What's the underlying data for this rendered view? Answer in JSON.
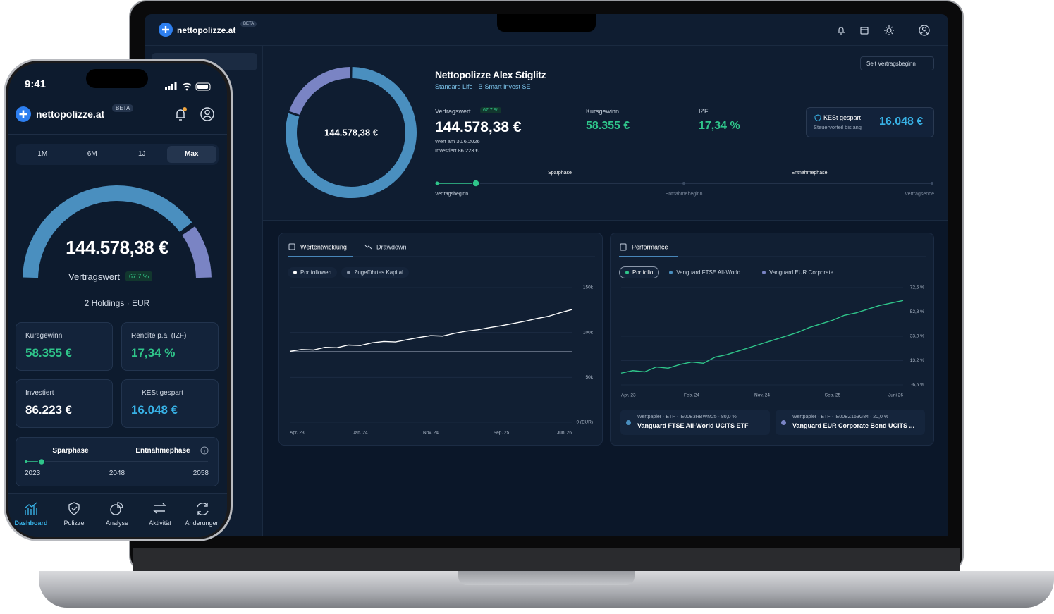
{
  "laptop": {
    "brand": "nettopolizze.at",
    "badge": "BETA",
    "period_select": "Seit Vertragsbeginn",
    "donut": {
      "type": "pie",
      "center_label": "144.578,38 €",
      "values": [
        80,
        20
      ],
      "colors": [
        "#4a8fbf",
        "#7a84c4"
      ]
    },
    "profile": {
      "name": "Nettopolizze Alex Stiglitz",
      "subtitle": "Standard Life · B-Smart Invest SE"
    },
    "stats": {
      "vertragswert_label": "Vertragswert",
      "change": "67,7 %",
      "vertragswert": "144.578,38 €",
      "date_note": "Wert am 30.6.2026",
      "invested_note": "Investiert 86.223 €",
      "kursgewinn_label": "Kursgewinn",
      "kursgewinn": "58.355 €",
      "izf_label": "IZF",
      "izf": "17,34 %",
      "kest_label": "KESt gespart",
      "kest_sub": "Steuervorteil bislang",
      "kest": "16.048 €"
    },
    "timeline": {
      "phase1": "Sparphase",
      "phase2": "Entnahmephase",
      "start": "Vertragsbeginn",
      "mid": "Entnahmebeginn",
      "end": "Vertragsende"
    },
    "wertentwicklung": {
      "type": "line",
      "tabs": [
        "Wertentwicklung",
        "Drawdown"
      ],
      "categories": [
        "Apr. 23",
        null,
        null,
        null,
        null,
        null,
        "Jän. 24",
        null,
        null,
        null,
        null,
        null,
        "Nov. 24",
        null,
        null,
        null,
        null,
        null,
        "Sep. 25",
        null,
        null,
        null,
        null,
        null,
        "Juni 26"
      ],
      "series": [
        {
          "name": "Portfoliowert",
          "color": "#ffffff",
          "values": [
            79000,
            81000,
            80500,
            83500,
            83000,
            86000,
            85500,
            88500,
            90000,
            89500,
            92000,
            94500,
            96500,
            96000,
            99000,
            101500,
            103000,
            105500,
            107500,
            110000,
            112500,
            115500,
            118000,
            122000,
            125500
          ]
        },
        {
          "name": "Zugeführtes Kapital",
          "color": "#8995a8",
          "values": [
            78500,
            78500,
            78500,
            78500,
            78500,
            78500,
            78500,
            78500,
            78500,
            78500,
            78500,
            78500,
            78500,
            78500,
            78500,
            78500,
            78500,
            78500,
            78500,
            78500,
            78500,
            78500,
            78500,
            78500,
            78500
          ]
        }
      ],
      "ylim": [
        0,
        150000
      ],
      "yticks": [
        {
          "value": 150000,
          "label": "150k"
        },
        {
          "value": 100000,
          "label": "100k"
        },
        {
          "value": 50000,
          "label": "50k"
        },
        {
          "value": 0,
          "label": "0 (EUR)"
        }
      ],
      "grid": true
    },
    "performance": {
      "type": "line",
      "tab": "Performance",
      "categories": [
        "Apr. 23",
        null,
        null,
        null,
        null,
        null,
        "Feb. 24",
        null,
        null,
        null,
        null,
        null,
        "Nov. 24",
        null,
        null,
        null,
        null,
        null,
        "Sep. 25",
        null,
        null,
        null,
        null,
        null,
        "Juni 26"
      ],
      "series": [
        {
          "name": "Portfolio",
          "color": "#2fc58a",
          "values": [
            3,
            5,
            4,
            8,
            7,
            10,
            12,
            11,
            16,
            18,
            21,
            24,
            27,
            30,
            33,
            36,
            40,
            43,
            46,
            50,
            52,
            55,
            58,
            60,
            62
          ]
        }
      ],
      "other_chips": [
        "Vanguard FTSE All-World ...",
        "Vanguard EUR Corporate ..."
      ],
      "ylim": [
        -6.6,
        72.5
      ],
      "yticks": [
        {
          "value": 72.5,
          "label": "72,5 %"
        },
        {
          "value": 52.8,
          "label": "52,8 %"
        },
        {
          "value": 33.0,
          "label": "33,0 %"
        },
        {
          "value": 13.2,
          "label": "13,2 %"
        },
        {
          "value": -6.6,
          "label": "-6,6 %"
        }
      ],
      "grid": true,
      "holdings": [
        {
          "meta": "Wertpapier · ETF · IE00B3RBWM25 · 80,0 %",
          "name": "Vanguard FTSE All-World UCITS ETF",
          "color": "#4a8fbf"
        },
        {
          "meta": "Wertpapier · ETF · IE00BZ163G84 · 20,0 %",
          "name": "Vanguard EUR Corporate Bond UCITS ...",
          "color": "#7a84c4"
        }
      ]
    }
  },
  "phone": {
    "time": "9:41",
    "brand": "nettopolizze.at",
    "badge": "BETA",
    "ranges": [
      "1M",
      "6M",
      "1J",
      "Max"
    ],
    "gauge": {
      "type": "pie",
      "values": [
        80,
        20
      ],
      "colors": [
        "#4a8fbf",
        "#7a84c4"
      ],
      "value": "144.578,38 €",
      "label": "Vertragswert",
      "change": "67,7 %"
    },
    "holdings_note": "2 Holdings · EUR",
    "cards": [
      {
        "label": "Kursgewinn",
        "value": "58.355 €",
        "color": "#2fc58a"
      },
      {
        "label": "Rendite p.a. (IZF)",
        "value": "17,34 %",
        "color": "#2fc58a"
      },
      {
        "label": "Investiert",
        "value": "86.223 €",
        "color": "#ffffff"
      },
      {
        "label": "KESt gespart",
        "value": "16.048 €",
        "color": "#38b2e6"
      }
    ],
    "timeline": {
      "phase1": "Sparphase",
      "phase2": "Entnahmephase",
      "years": [
        "2023",
        "2048",
        "2058"
      ]
    },
    "nav": [
      "Dashboard",
      "Polizze",
      "Analyse",
      "Aktivität",
      "Änderungen"
    ]
  }
}
